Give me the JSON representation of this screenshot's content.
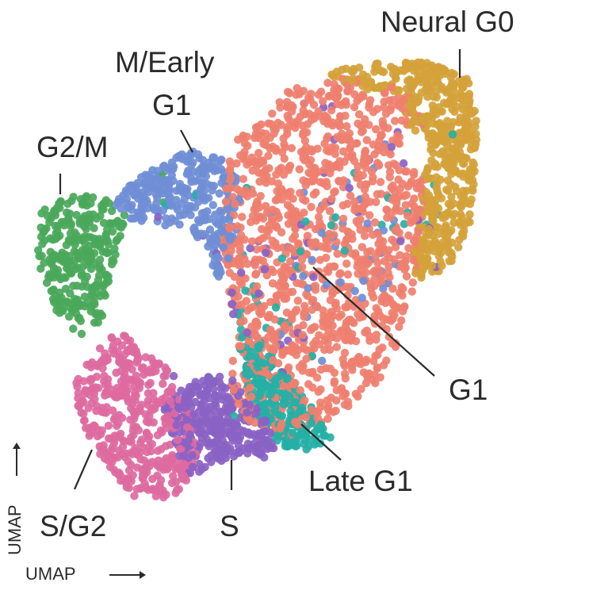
{
  "chart_data": {
    "type": "scatter",
    "xlabel": "UMAP",
    "ylabel": "UMAP",
    "series": [
      {
        "name": "Neural G0",
        "color": "#d4a23a",
        "cluster": "neural_g0",
        "n": 520
      },
      {
        "name": "G1",
        "color": "#ef7f6f",
        "cluster": "g1",
        "n": 1250
      },
      {
        "name": "M/Early G1",
        "color": "#6f8ed6",
        "cluster": "mearly",
        "n": 300
      },
      {
        "name": "G2/M",
        "color": "#4aa85a",
        "cluster": "g2m",
        "n": 300
      },
      {
        "name": "S/G2",
        "color": "#dd6aa0",
        "cluster": "sg2",
        "n": 420
      },
      {
        "name": "S",
        "color": "#8a62c4",
        "cluster": "s",
        "n": 320
      },
      {
        "name": "Late G1",
        "color": "#25b0a6",
        "cluster": "lateg1",
        "n": 220
      }
    ],
    "annotations": [
      {
        "text": "Neural G0",
        "target": "neural_g0"
      },
      {
        "text": "M/Early",
        "target": "mearly"
      },
      {
        "text": "G1",
        "target": "mearly"
      },
      {
        "text": "G2/M",
        "target": "g2m"
      },
      {
        "text": "G1",
        "target": "g1"
      },
      {
        "text": "Late G1",
        "target": "lateg1"
      },
      {
        "text": "S/G2",
        "target": "sg2"
      },
      {
        "text": "S",
        "target": "s"
      }
    ]
  }
}
